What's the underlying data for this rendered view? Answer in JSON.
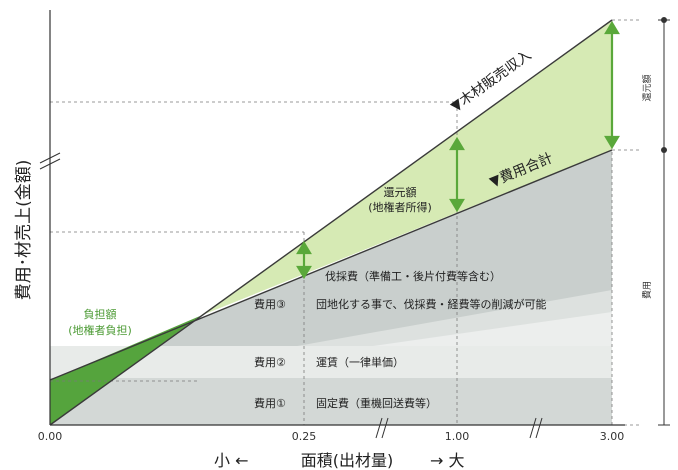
{
  "y_axis_label": "費用･材売上(金額)",
  "x_axis": {
    "ticks": [
      "0.00",
      "0.25",
      "1.00",
      "3.00"
    ],
    "left_word": "小 ←",
    "label": "面積(出材量)",
    "right_word": "→ 大"
  },
  "lines": {
    "revenue": "▼木材販売収入",
    "total_cost": "▼費用合計"
  },
  "annotations": {
    "return_title": "還元額",
    "return_sub": "(地権者所得)",
    "burden_title": "負担額",
    "burden_sub": "(地権者負担)",
    "logging_cost": "伐採費（準備工・後片付費等含む）"
  },
  "cost_items": [
    {
      "tag": "費用③",
      "text": "団地化する事で、伐採費・経費等の削減が可能"
    },
    {
      "tag": "費用②",
      "text": "運賃（一律単価）"
    },
    {
      "tag": "費用①",
      "text": "固定費（重機回送費等）"
    }
  ],
  "right_scale": {
    "top": "還元額",
    "bottom": "費用"
  },
  "colors": {
    "green_dark": "#55a43d",
    "green_light": "#d6eab4",
    "green_line": "#5aa83a",
    "gray_dark": "#c9cfcd",
    "gray_mid": "#e2e6e4",
    "gray_light": "#eef0ef"
  }
}
